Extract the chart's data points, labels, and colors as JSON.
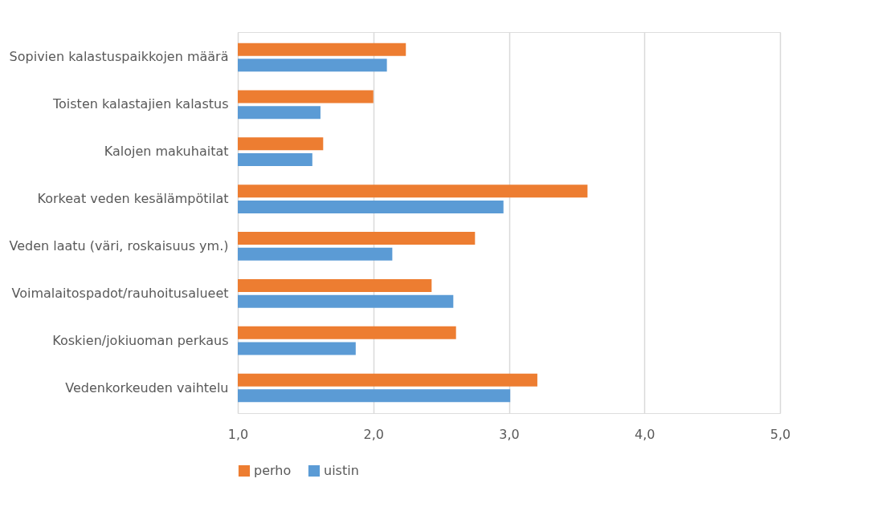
{
  "chart_data": {
    "type": "bar",
    "orientation": "horizontal",
    "categories": [
      "Sopivien kalastuspaikkojen määrä",
      "Toisten kalastajien kalastus",
      "Kalojen makuhaitat",
      "Korkeat veden kesälämpötilat",
      "Veden laatu (väri, roskaisuus ym.)",
      "Voimalaitospadot/rauhoitusalueet",
      "Koskien/jokiuoman perkaus",
      "Vedenkorkeuden vaihtelu "
    ],
    "series": [
      {
        "name": "perho",
        "color": "#ed7d31",
        "values": [
          2.24,
          2.0,
          1.63,
          3.58,
          2.75,
          2.43,
          2.61,
          3.21
        ]
      },
      {
        "name": "uistin",
        "color": "#5b9bd5",
        "values": [
          2.1,
          1.61,
          1.55,
          2.96,
          2.14,
          2.59,
          1.87,
          3.01
        ]
      }
    ],
    "xlim": [
      1,
      5
    ],
    "xticks": [
      {
        "value": 1,
        "label": "1,0"
      },
      {
        "value": 2,
        "label": "2,0"
      },
      {
        "value": 3,
        "label": "3,0"
      },
      {
        "value": 4,
        "label": "4,0"
      },
      {
        "value": 5,
        "label": "5,0"
      }
    ],
    "grid": "x",
    "legend": "bottom"
  }
}
